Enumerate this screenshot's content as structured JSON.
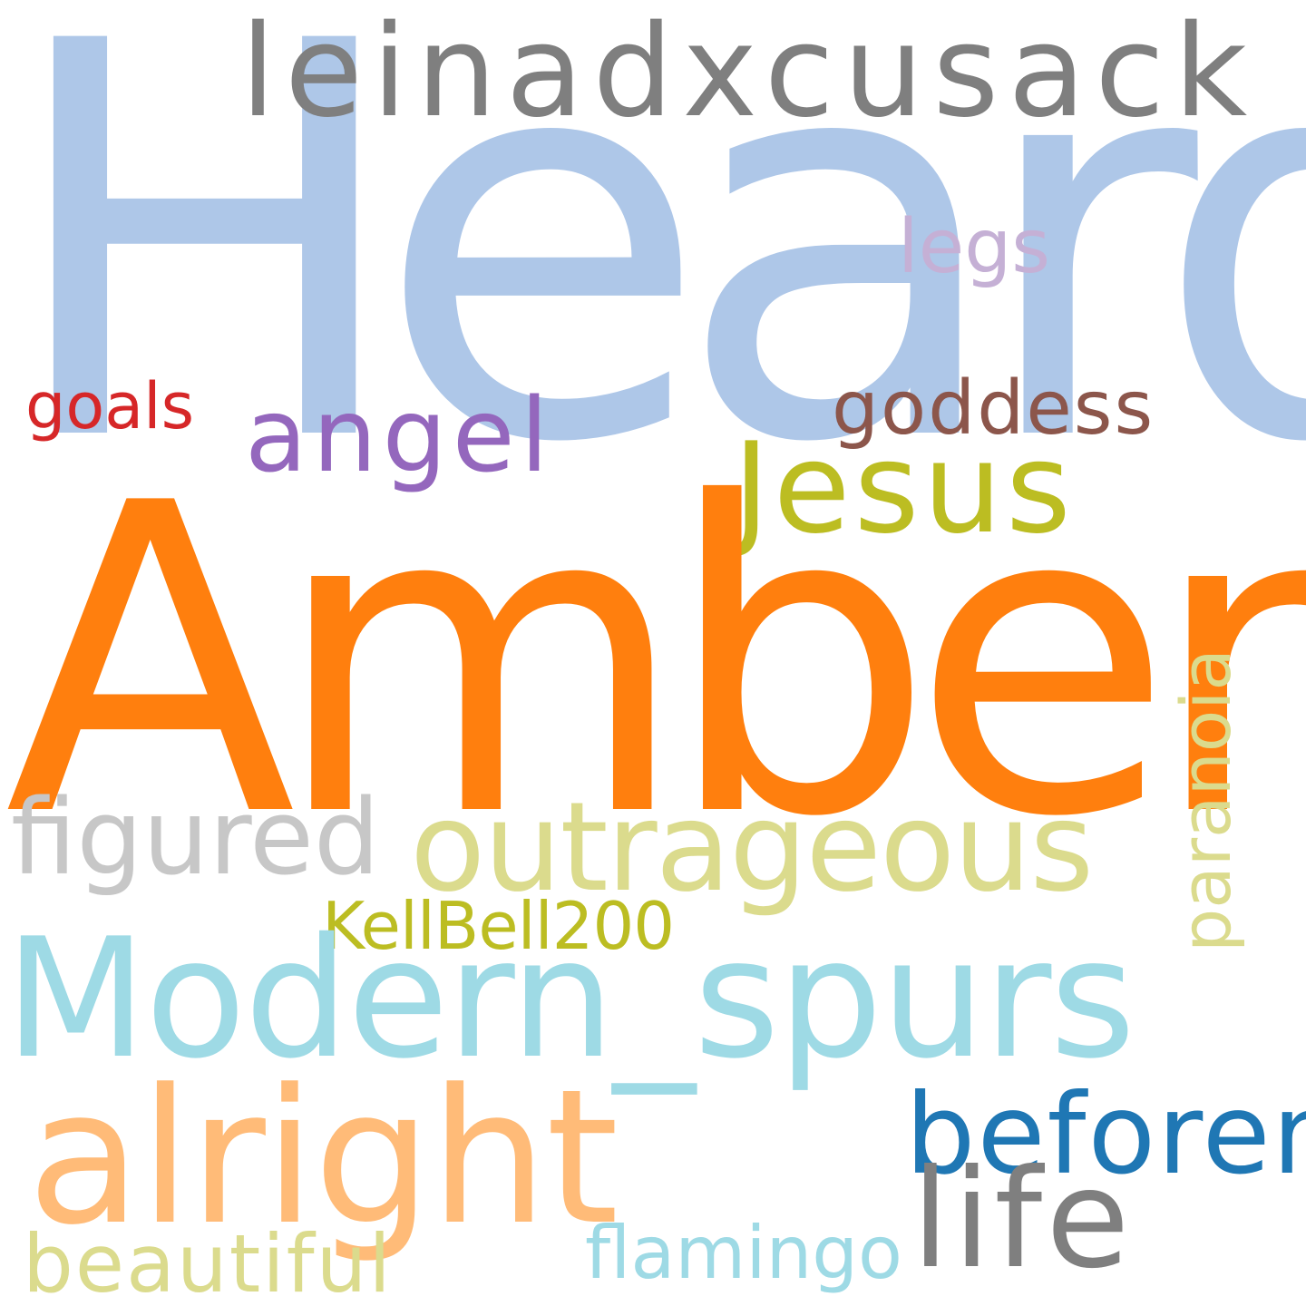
{
  "word_cloud": {
    "background": "#ffffff",
    "words": [
      {
        "text": "Heard",
        "color": "#aec7e8"
      },
      {
        "text": "leinadxcusack",
        "color": "#7f7f7f"
      },
      {
        "text": "legs",
        "color": "#c5b0d5"
      },
      {
        "text": "goals",
        "color": "#d62728"
      },
      {
        "text": "angel",
        "color": "#9467bd"
      },
      {
        "text": "goddess",
        "color": "#8c564b"
      },
      {
        "text": "Jesus",
        "color": "#bcbd22"
      },
      {
        "text": "Amber",
        "color": "#ff7f0e"
      },
      {
        "text": "figured",
        "color": "#c7c7c7"
      },
      {
        "text": "outrageous",
        "color": "#dbdb8d"
      },
      {
        "text": "paranoia",
        "color": "#dbdb8d"
      },
      {
        "text": "KellBell200",
        "color": "#bcbd22"
      },
      {
        "text": "Modern_spurs",
        "color": "#9edae5"
      },
      {
        "text": "alright",
        "color": "#ffbb78"
      },
      {
        "text": "beforem",
        "color": "#1f77b4"
      },
      {
        "text": "life",
        "color": "#7f7f7f"
      },
      {
        "text": "flamingo",
        "color": "#9edae5"
      },
      {
        "text": "beautiful",
        "color": "#dbdb8d"
      }
    ]
  }
}
